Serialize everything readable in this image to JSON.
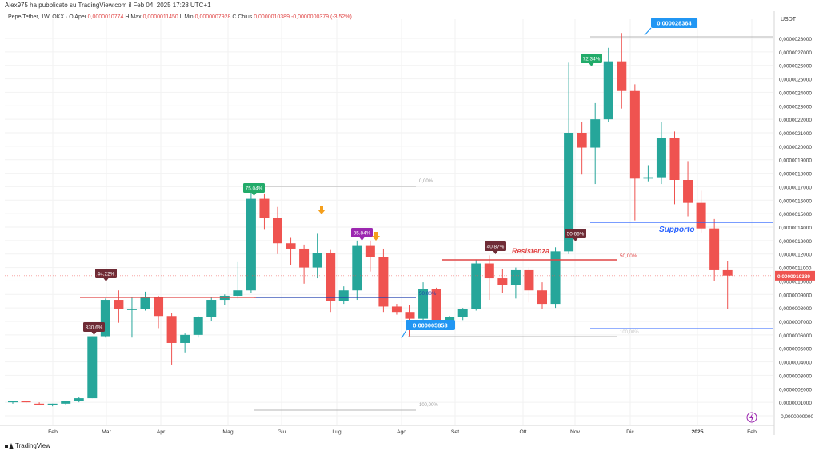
{
  "header": {
    "published_by": "Alex975 ha pubblicato su TradingView.com il Feb 04, 2025 17:28 UTC+1"
  },
  "symbol": {
    "name": "Pepe/Tether, 1W, OKX",
    "open_label": "O",
    "open_prefix": "Aper.",
    "open": "0,0000010774",
    "high_label": "H",
    "high_prefix": "Max.",
    "high": "0,0000011450",
    "low_label": "L",
    "low_prefix": "Min.",
    "low": "0,0000007928",
    "close_label": "C",
    "close_prefix": "Chius.",
    "close": "0,0000010389",
    "change": "-0,0000000379 (-3,52%)"
  },
  "price_axis": {
    "currency": "USDT",
    "current_price": "0,0000010389",
    "ticks": [
      "0,0000028000",
      "0,0000027000",
      "0,0000026000",
      "0,0000025000",
      "0,0000024000",
      "0,0000023000",
      "0,0000022000",
      "0,0000021000",
      "0,0000020000",
      "0,0000019000",
      "0,0000018000",
      "0,0000017000",
      "0,0000016000",
      "0,0000015000",
      "0,0000014000",
      "0,0000013000",
      "0,0000012000",
      "0,0000011000",
      "0,0000010000",
      "0,0000009000",
      "0,0000008000",
      "0,0000007000",
      "0,0000006000",
      "0,0000005000",
      "0,0000004000",
      "0,0000003000",
      "0,0000002000",
      "0,0000001000",
      "-0,0000000000"
    ]
  },
  "time_axis": {
    "labels": [
      "Feb",
      "Mar",
      "Apr",
      "Mag",
      "Giu",
      "Lug",
      "Ago",
      "Set",
      "Ott",
      "Nov",
      "Dic",
      "2025",
      "Feb"
    ]
  },
  "annotations": {
    "resistance": "Resistenza",
    "support": "Supporto",
    "callout_top": "0,000028364",
    "callout_bottom": "0,000005853",
    "fib_0": "0,00%",
    "fib_50_a": "50,00%",
    "fib_50_b": "50,00%",
    "fib_100": "100,00%",
    "fib_extra": "100,00%",
    "badges": [
      "330.6%",
      "44.22%",
      "75.04%",
      "35.84%",
      "40.87%",
      "50.66%",
      "72.34%"
    ]
  },
  "colors": {
    "up": "#26a69a",
    "down": "#ef5350",
    "resistance": "#e04545",
    "support": "#2962ff",
    "callout": "#2196f3",
    "badge_green": "#22ab6a",
    "badge_maroon": "#6e2b35",
    "badge_purple": "#9c27b0"
  },
  "chart_data": {
    "type": "candlestick",
    "title": "Pepe/Tether, 1W, OKX",
    "ylabel": "USDT",
    "ylim": [
      0,
      2.9e-06
    ],
    "candles": [
      {
        "o": 1e-07,
        "h": 1.1e-07,
        "l": 9e-08,
        "c": 1.1e-07
      },
      {
        "o": 1.1e-07,
        "h": 1.1e-07,
        "l": 9e-08,
        "c": 1e-07
      },
      {
        "o": 9e-08,
        "h": 1e-07,
        "l": 8e-08,
        "c": 8e-08
      },
      {
        "o": 8e-08,
        "h": 9e-08,
        "l": 7e-08,
        "c": 9e-08
      },
      {
        "o": 9e-08,
        "h": 1.1e-07,
        "l": 8e-08,
        "c": 1.1e-07
      },
      {
        "o": 1.1e-07,
        "h": 1.4e-07,
        "l": 1e-07,
        "c": 1.3e-07
      },
      {
        "o": 1.3e-07,
        "h": 5.9e-07,
        "l": 1.3e-07,
        "c": 5.9e-07
      },
      {
        "o": 5.9e-07,
        "h": 8.7e-07,
        "l": 5.8e-07,
        "c": 8.6e-07
      },
      {
        "o": 8.6e-07,
        "h": 9.3e-07,
        "l": 6.9e-07,
        "c": 7.9e-07
      },
      {
        "o": 7.9e-07,
        "h": 8.8e-07,
        "l": 5.8e-07,
        "c": 7.9e-07
      },
      {
        "o": 7.9e-07,
        "h": 9.2e-07,
        "l": 7.8e-07,
        "c": 8.8e-07
      },
      {
        "o": 8.8e-07,
        "h": 8.9e-07,
        "l": 6.5e-07,
        "c": 7.4e-07
      },
      {
        "o": 7.4e-07,
        "h": 7.6e-07,
        "l": 3.8e-07,
        "c": 5.4e-07
      },
      {
        "o": 5.4e-07,
        "h": 6.1e-07,
        "l": 4.7e-07,
        "c": 6e-07
      },
      {
        "o": 6e-07,
        "h": 7.4e-07,
        "l": 5.8e-07,
        "c": 7.3e-07
      },
      {
        "o": 7.3e-07,
        "h": 8.8e-07,
        "l": 7e-07,
        "c": 8.6e-07
      },
      {
        "o": 8.6e-07,
        "h": 9e-07,
        "l": 8.2e-07,
        "c": 8.9e-07
      },
      {
        "o": 8.9e-07,
        "h": 1.14e-06,
        "l": 8.7e-07,
        "c": 9.3e-07
      },
      {
        "o": 9.3e-07,
        "h": 1.7e-06,
        "l": 9.1e-07,
        "c": 1.61e-06
      },
      {
        "o": 1.61e-06,
        "h": 1.65e-06,
        "l": 1.38e-06,
        "c": 1.47e-06
      },
      {
        "o": 1.47e-06,
        "h": 1.55e-06,
        "l": 1.2e-06,
        "c": 1.28e-06
      },
      {
        "o": 1.28e-06,
        "h": 1.32e-06,
        "l": 1.12e-06,
        "c": 1.24e-06
      },
      {
        "o": 1.24e-06,
        "h": 1.27e-06,
        "l": 9.8e-07,
        "c": 1.1e-06
      },
      {
        "o": 1.1e-06,
        "h": 1.35e-06,
        "l": 1.02e-06,
        "c": 1.21e-06
      },
      {
        "o": 1.21e-06,
        "h": 1.23e-06,
        "l": 7.7e-07,
        "c": 8.5e-07
      },
      {
        "o": 8.5e-07,
        "h": 9.6e-07,
        "l": 8.3e-07,
        "c": 9.3e-07
      },
      {
        "o": 9.3e-07,
        "h": 1.3e-06,
        "l": 8.6e-07,
        "c": 1.26e-06
      },
      {
        "o": 1.26e-06,
        "h": 1.3e-06,
        "l": 1.07e-06,
        "c": 1.18e-06
      },
      {
        "o": 1.18e-06,
        "h": 1.24e-06,
        "l": 7.7e-07,
        "c": 8.1e-07
      },
      {
        "o": 8.1e-07,
        "h": 8.3e-07,
        "l": 7.5e-07,
        "c": 7.7e-07
      },
      {
        "o": 7.7e-07,
        "h": 8.2e-07,
        "l": 5.9e-07,
        "c": 7.2e-07
      },
      {
        "o": 7.2e-07,
        "h": 9.9e-07,
        "l": 6.9e-07,
        "c": 9.4e-07
      },
      {
        "o": 9.4e-07,
        "h": 9.5e-07,
        "l": 6.9e-07,
        "c": 7e-07
      },
      {
        "o": 7e-07,
        "h": 7.4e-07,
        "l": 6.9e-07,
        "c": 7.3e-07
      },
      {
        "o": 7.3e-07,
        "h": 8e-07,
        "l": 7.1e-07,
        "c": 7.9e-07
      },
      {
        "o": 7.9e-07,
        "h": 1.16e-06,
        "l": 7.8e-07,
        "c": 1.13e-06
      },
      {
        "o": 1.13e-06,
        "h": 1.19e-06,
        "l": 8.6e-07,
        "c": 1.02e-06
      },
      {
        "o": 1.02e-06,
        "h": 1.09e-06,
        "l": 9.1e-07,
        "c": 9.7e-07
      },
      {
        "o": 9.7e-07,
        "h": 1.1e-06,
        "l": 8.7e-07,
        "c": 1.08e-06
      },
      {
        "o": 1.08e-06,
        "h": 1.1e-06,
        "l": 8.4e-07,
        "c": 9.3e-07
      },
      {
        "o": 9.3e-07,
        "h": 9.9e-07,
        "l": 7.9e-07,
        "c": 8.3e-07
      },
      {
        "o": 8.3e-07,
        "h": 1.25e-06,
        "l": 8e-07,
        "c": 1.22e-06
      },
      {
        "o": 1.22e-06,
        "h": 2.62e-06,
        "l": 1.2e-06,
        "c": 2.1e-06
      },
      {
        "o": 2.1e-06,
        "h": 2.18e-06,
        "l": 1.79e-06,
        "c": 1.99e-06
      },
      {
        "o": 1.99e-06,
        "h": 2.32e-06,
        "l": 1.72e-06,
        "c": 2.2e-06
      },
      {
        "o": 2.2e-06,
        "h": 2.73e-06,
        "l": 2.18e-06,
        "c": 2.63e-06
      },
      {
        "o": 2.63e-06,
        "h": 2.84e-06,
        "l": 2.28e-06,
        "c": 2.41e-06
      },
      {
        "o": 2.41e-06,
        "h": 2.46e-06,
        "l": 1.45e-06,
        "c": 1.76e-06
      },
      {
        "o": 1.76e-06,
        "h": 1.86e-06,
        "l": 1.74e-06,
        "c": 1.77e-06
      },
      {
        "o": 1.77e-06,
        "h": 2.18e-06,
        "l": 1.72e-06,
        "c": 2.06e-06
      },
      {
        "o": 2.06e-06,
        "h": 2.11e-06,
        "l": 1.57e-06,
        "c": 1.75e-06
      },
      {
        "o": 1.75e-06,
        "h": 1.89e-06,
        "l": 1.48e-06,
        "c": 1.58e-06
      },
      {
        "o": 1.58e-06,
        "h": 1.67e-06,
        "l": 1.36e-06,
        "c": 1.39e-06
      },
      {
        "o": 1.39e-06,
        "h": 1.46e-06,
        "l": 1e-06,
        "c": 1.08e-06
      },
      {
        "o": 1.08e-06,
        "h": 1.15e-06,
        "l": 7.9e-07,
        "c": 1.04e-06
      }
    ]
  }
}
